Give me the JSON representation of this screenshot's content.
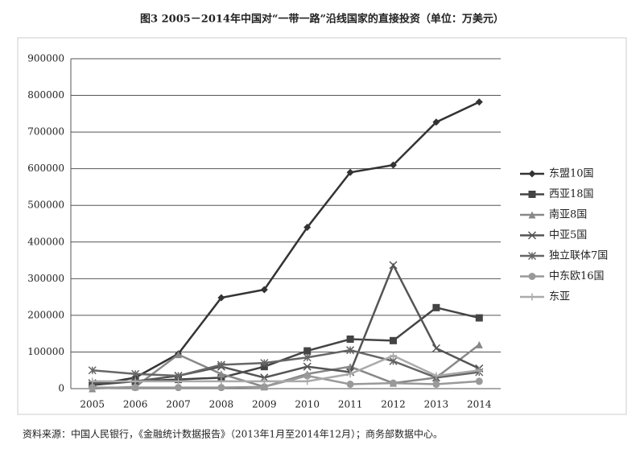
{
  "chart_data": {
    "type": "line",
    "title": "图3 2005－2014年中国对“一带一路”沿线国家的直接投资（单位：万美元）",
    "source": "资料来源：中国人民银行，《金融统计数据报告》（2013年1月至2014年12月）；商务部数据中心。",
    "categories": [
      "2005",
      "2006",
      "2007",
      "2008",
      "2009",
      "2010",
      "2011",
      "2012",
      "2013",
      "2014"
    ],
    "ylim": [
      0,
      900000
    ],
    "yticks": [
      0,
      100000,
      200000,
      300000,
      400000,
      500000,
      600000,
      700000,
      800000,
      900000
    ],
    "grid": true,
    "legend": "right",
    "series": [
      {
        "name": "东盟10国",
        "color": "#333333",
        "marker": "diamond",
        "values": [
          10000,
          30000,
          95000,
          248000,
          270000,
          440000,
          590000,
          610000,
          727000,
          782000
        ]
      },
      {
        "name": "西亚18国",
        "color": "#444444",
        "marker": "square",
        "values": [
          10000,
          20000,
          25000,
          30000,
          60000,
          103000,
          135000,
          131000,
          221000,
          193000
        ]
      },
      {
        "name": "南亚8国",
        "color": "#888888",
        "marker": "triangle",
        "values": [
          0,
          5000,
          93000,
          40000,
          5000,
          40000,
          60000,
          15000,
          30000,
          120000
        ]
      },
      {
        "name": "中亚5国",
        "color": "#555555",
        "marker": "x",
        "values": [
          15000,
          20000,
          35000,
          60000,
          30000,
          60000,
          45000,
          337000,
          110000,
          55000
        ]
      },
      {
        "name": "独立联体7国",
        "color": "#666666",
        "marker": "star",
        "values": [
          50000,
          40000,
          35000,
          65000,
          70000,
          85000,
          105000,
          75000,
          30000,
          45000
        ]
      },
      {
        "name": "中东欧16国",
        "color": "#999999",
        "marker": "circle",
        "values": [
          3000,
          3000,
          3000,
          3000,
          5000,
          35000,
          12000,
          15000,
          12000,
          20000
        ]
      },
      {
        "name": "东亚",
        "color": "#aaaaaa",
        "marker": "plus",
        "values": [
          20000,
          20000,
          20000,
          20000,
          20000,
          20000,
          40000,
          90000,
          35000,
          50000
        ]
      }
    ]
  }
}
